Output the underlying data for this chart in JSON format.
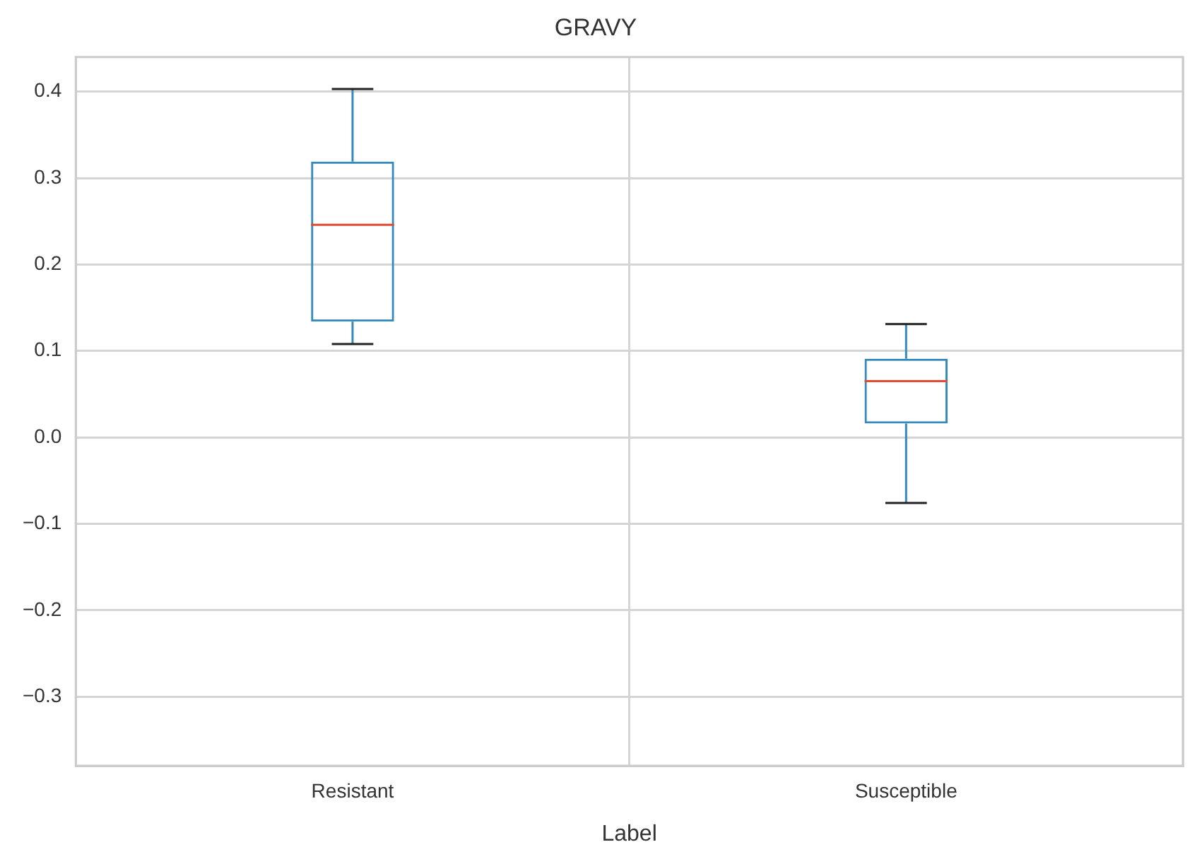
{
  "chart_data": {
    "type": "box",
    "title": "GRAVY",
    "xlabel": "Label",
    "categories": [
      "Resistant",
      "Susceptible"
    ],
    "color": "#348abd",
    "boxes": [
      {
        "low": 0.108,
        "q1": 0.134,
        "median": 0.246,
        "q3": 0.319,
        "high": 0.403
      },
      {
        "low": -0.076,
        "q1": 0.016,
        "median": 0.065,
        "q3": 0.091,
        "high": 0.131
      }
    ],
    "ylim": [
      -0.38,
      0.44
    ],
    "yticks": [
      {
        "value": -0.3,
        "label": "−0.3"
      },
      {
        "value": -0.2,
        "label": "−0.2"
      },
      {
        "value": -0.1,
        "label": "−0.1"
      },
      {
        "value": 0,
        "label": "0.0"
      },
      0.1,
      0.2,
      0.3,
      0.4
    ],
    "grid": true
  }
}
